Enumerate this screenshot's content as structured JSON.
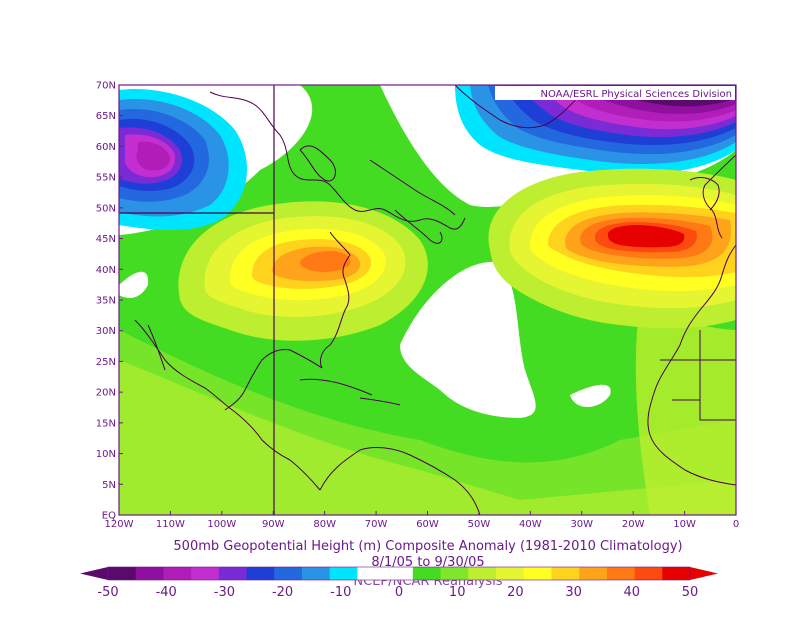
{
  "map": {
    "credit": "NOAA/ESRL Physical Sciences Division",
    "title": "500mb Geopotential Height (m) Composite Anomaly (1981-2010 Climatology)",
    "subtitle": "8/1/05 to 9/30/05",
    "source": "NCEP/NCAR Reanalysis",
    "lat_labels": [
      "70N",
      "65N",
      "60N",
      "55N",
      "50N",
      "45N",
      "40N",
      "35N",
      "30N",
      "25N",
      "20N",
      "15N",
      "10N",
      "5N",
      "EQ"
    ],
    "lon_labels": [
      "120W",
      "110W",
      "100W",
      "90W",
      "80W",
      "70W",
      "60W",
      "50W",
      "40W",
      "30W",
      "20W",
      "10W",
      "0"
    ],
    "colorbar": {
      "labels": [
        "-50",
        "-40",
        "-30",
        "-20",
        "-10",
        "0",
        "10",
        "20",
        "30",
        "40",
        "50"
      ],
      "colors": [
        "#5a0a6a",
        "#8f0f9f",
        "#b01db8",
        "#c22ed0",
        "#7a2bd6",
        "#1e3fd6",
        "#2468e0",
        "#2a93e6",
        "#00e5ff",
        "#ffffff",
        "#ffffff",
        "#44dc22",
        "#7fe62a",
        "#bdef30",
        "#e6f532",
        "#ffff22",
        "#ffd21e",
        "#ffa41a",
        "#ff7a14",
        "#ff4a0f",
        "#e60000"
      ]
    },
    "colors": {
      "border": "#6a1a8a",
      "coast": "#4a004a",
      "neg_strong": "#4a0050",
      "pos_strong": "#d80000",
      "zero_band": "#ffffff"
    }
  }
}
